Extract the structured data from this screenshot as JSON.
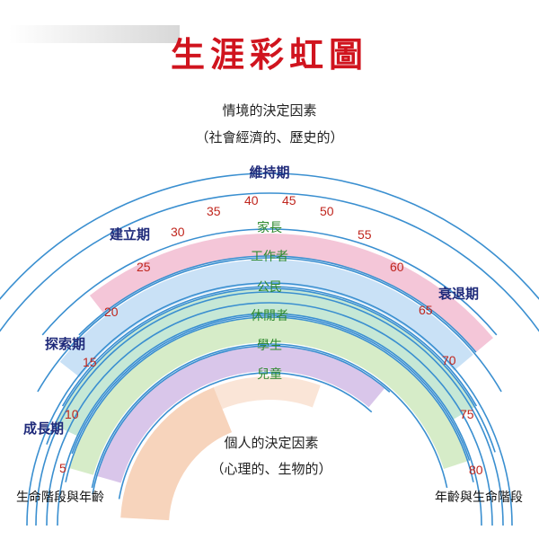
{
  "title": "生涯彩虹圖",
  "top_factor": {
    "line1": "情境的決定因素",
    "line2": "（社會經濟的、歷史的）"
  },
  "bottom_factor": {
    "line1": "個人的決定因素",
    "line2": "（心理的、生物的）"
  },
  "life_stages": [
    "成長期",
    "探索期",
    "建立期",
    "維持期",
    "衰退期"
  ],
  "ages": [
    "5",
    "10",
    "15",
    "20",
    "25",
    "30",
    "35",
    "40",
    "45",
    "50",
    "55",
    "60",
    "65",
    "70",
    "75",
    "80"
  ],
  "roles": [
    {
      "label": "家長",
      "color": "#f4c6d8"
    },
    {
      "label": "工作者",
      "color": "#c9e1f6"
    },
    {
      "label": "公民",
      "color": "#c6e8d6"
    },
    {
      "label": "休閒者",
      "color": "#d6ecc8"
    },
    {
      "label": "學生",
      "color": "#d9c6ea"
    },
    {
      "label": "兒童",
      "color": "#f7d4bc"
    }
  ],
  "axis_labels": {
    "left": "生命階段與年齡",
    "right": "年齡與生命階段"
  },
  "colors": {
    "arc_line": "#3a8fd0",
    "title": "#d0141e",
    "stage": "#1f2a7a",
    "age": "#c0261e",
    "role_text": "#2f8a2f"
  }
}
